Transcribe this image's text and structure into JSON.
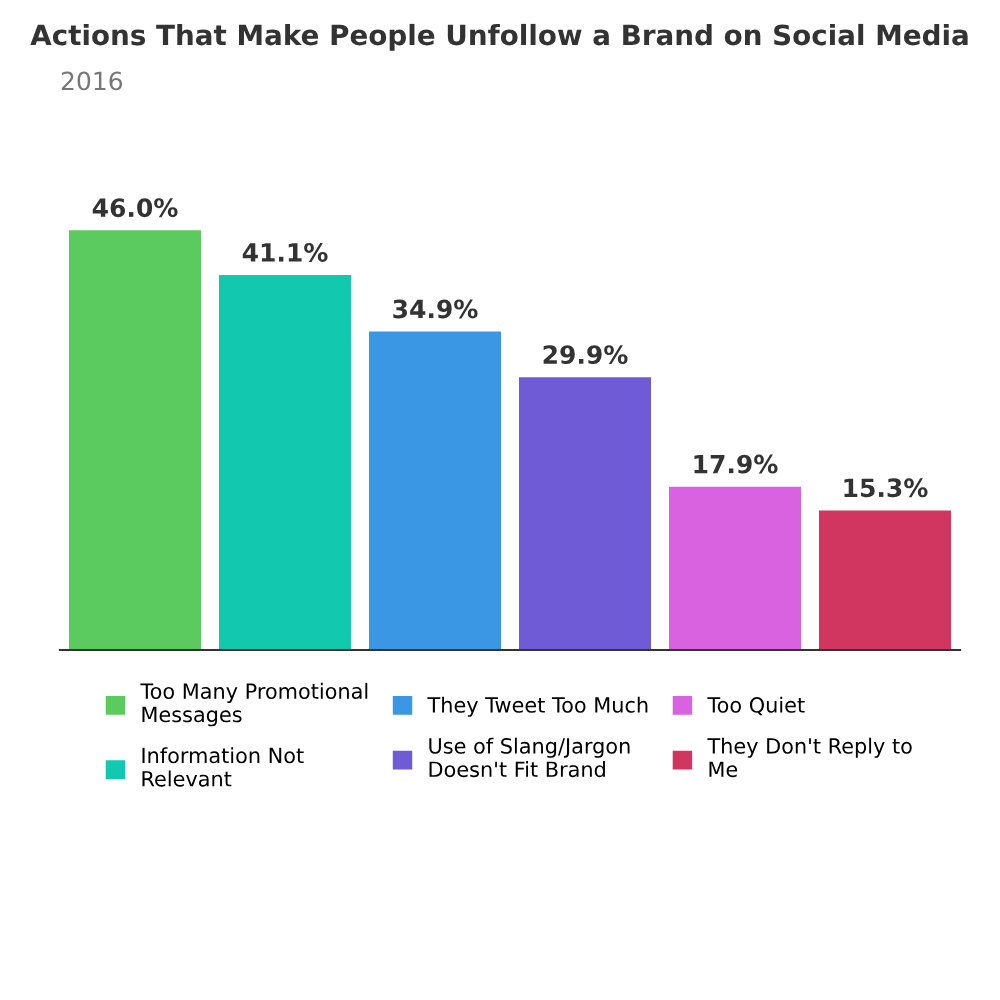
{
  "chart_data": {
    "type": "bar",
    "title": "Actions That Make People Unfollow a Brand on Social Media",
    "subtitle": "2016",
    "categories": [
      null,
      null,
      null,
      null,
      null,
      null
    ],
    "stacked": true,
    "series": [
      {
        "name": "Too Many Promotional Messages",
        "color": "#5ccb5f",
        "values": [
          46.0,
          null,
          null,
          null,
          null,
          null
        ],
        "value_labels": [
          "46.0%",
          null,
          null,
          null,
          null,
          null
        ]
      },
      {
        "name": "Information Not Relevant",
        "color": "#12c9b0",
        "values": [
          null,
          41.1,
          null,
          null,
          null,
          null
        ],
        "value_labels": [
          null,
          "41.1%",
          null,
          null,
          null,
          null
        ]
      },
      {
        "name": "They Tweet Too Much",
        "color": "#3a97e4",
        "values": [
          null,
          null,
          34.9,
          null,
          null,
          null
        ],
        "value_labels": [
          null,
          null,
          "34.9%",
          null,
          null,
          null
        ]
      },
      {
        "name": "Use of Slang/Jargon Doesn't Fit Brand",
        "color": "#6f5bd6",
        "values": [
          null,
          null,
          null,
          29.9,
          null,
          null
        ],
        "value_labels": [
          null,
          null,
          null,
          "29.9%",
          null,
          null
        ]
      },
      {
        "name": "Too Quiet",
        "color": "#d962e0",
        "values": [
          null,
          null,
          null,
          null,
          17.9,
          null
        ],
        "value_labels": [
          null,
          null,
          null,
          null,
          "17.9%",
          null
        ]
      },
      {
        "name": "They Don't Reply to Me",
        "color": "#d0365f",
        "values": [
          null,
          null,
          null,
          null,
          null,
          15.3
        ],
        "value_labels": [
          null,
          null,
          null,
          null,
          null,
          "15.3%"
        ]
      }
    ],
    "legend": "bottom",
    "grid": false,
    "tick_labels": false
  }
}
